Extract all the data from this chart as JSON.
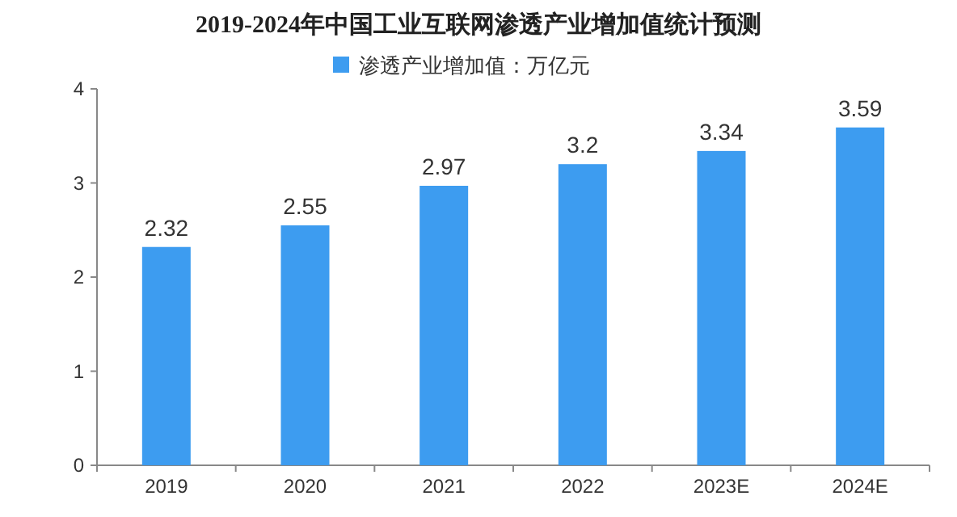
{
  "chart_data": {
    "type": "bar",
    "title": "2019-2024年中国工业互联网渗透产业增加值统计预测",
    "categories": [
      "2019",
      "2020",
      "2021",
      "2022",
      "2023E",
      "2024E"
    ],
    "series": [
      {
        "name": "渗透产业增加值：万亿元",
        "color": "#3d9cf0",
        "values": [
          2.32,
          2.55,
          2.97,
          3.2,
          3.34,
          3.59
        ]
      }
    ],
    "ylim": [
      0,
      4
    ],
    "yticks": [
      0,
      1,
      2,
      3,
      4
    ],
    "data_labels": true,
    "legend": "top"
  }
}
